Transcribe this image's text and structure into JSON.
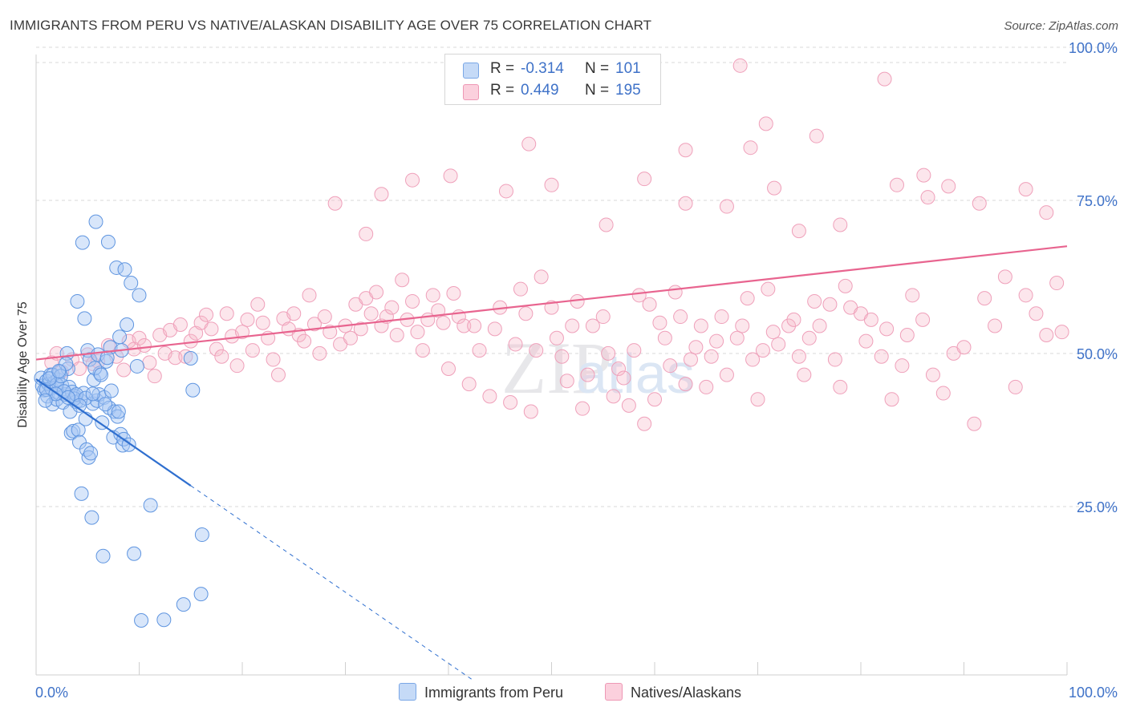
{
  "header": {
    "title": "IMMIGRANTS FROM PERU VS NATIVE/ALASKAN DISABILITY AGE OVER 75 CORRELATION CHART",
    "source": "Source: ZipAtlas.com"
  },
  "stats": {
    "rows": [
      {
        "r_label": "R =",
        "r_value": "-0.314",
        "n_label": "N =",
        "n_value": "101",
        "color": "#a9c8f3"
      },
      {
        "r_label": "R =",
        "r_value": "0.449",
        "n_label": "N =",
        "n_value": "195",
        "color": "#f6b7c9"
      }
    ]
  },
  "legend": {
    "items": [
      {
        "label": "Immigrants from Peru",
        "color": "#a9c8f3"
      },
      {
        "label": "Natives/Alaskans",
        "color": "#f6b7c9"
      }
    ]
  },
  "watermark": {
    "zip": "ZIP",
    "atlas": "atlas"
  },
  "chart_data": {
    "type": "scatter",
    "title": "IMMIGRANTS FROM PERU VS NATIVE/ALASKAN DISABILITY AGE OVER 75 CORRELATION CHART",
    "xlabel": "",
    "ylabel": "Disability Age Over 75",
    "xlim": [
      0,
      100
    ],
    "ylim": [
      0,
      100
    ],
    "x_tick_labels": [
      "0.0%",
      "100.0%"
    ],
    "y_tick_labels": [
      "25.0%",
      "50.0%",
      "75.0%",
      "100.0%"
    ],
    "y_ticks": [
      25,
      50,
      75,
      100
    ],
    "grid": true,
    "series": [
      {
        "name": "Immigrants from Peru",
        "color": "#6fa3e8",
        "line_color": "#2f6fcf",
        "trend": {
          "x0": 0,
          "y0": 48.3,
          "x1": 15,
          "y1": 30.9,
          "dashed_to_x": 42.5
        },
        "points": [
          [
            0.5,
            48.5
          ],
          [
            0.6,
            47.2
          ],
          [
            0.8,
            46.5
          ],
          [
            1.0,
            48.0
          ],
          [
            1.1,
            45.5
          ],
          [
            1.2,
            47.5
          ],
          [
            1.4,
            49.0
          ],
          [
            1.5,
            46.8
          ],
          [
            1.6,
            44.2
          ],
          [
            1.8,
            47.8
          ],
          [
            2.0,
            45.0
          ],
          [
            2.1,
            48.2
          ],
          [
            2.2,
            46.0
          ],
          [
            2.3,
            49.5
          ],
          [
            2.5,
            47.3
          ],
          [
            2.6,
            44.5
          ],
          [
            2.8,
            45.8
          ],
          [
            3.0,
            52.5
          ],
          [
            3.1,
            50.0
          ],
          [
            3.2,
            47.0
          ],
          [
            3.3,
            43.0
          ],
          [
            3.4,
            39.5
          ],
          [
            3.5,
            46.2
          ],
          [
            3.6,
            39.8
          ],
          [
            3.8,
            45.5
          ],
          [
            3.9,
            44.6
          ],
          [
            4.0,
            61.0
          ],
          [
            4.1,
            40.0
          ],
          [
            4.2,
            38.0
          ],
          [
            4.3,
            44.8
          ],
          [
            4.4,
            29.6
          ],
          [
            4.5,
            70.6
          ],
          [
            4.6,
            46.0
          ],
          [
            4.7,
            58.2
          ],
          [
            4.8,
            41.8
          ],
          [
            4.9,
            36.8
          ],
          [
            5.0,
            53.0
          ],
          [
            5.1,
            35.5
          ],
          [
            5.2,
            51.5
          ],
          [
            5.3,
            36.2
          ],
          [
            5.4,
            25.7
          ],
          [
            5.5,
            44.3
          ],
          [
            5.6,
            48.2
          ],
          [
            5.8,
            74.0
          ],
          [
            5.9,
            44.8
          ],
          [
            6.0,
            52.3
          ],
          [
            6.1,
            45.8
          ],
          [
            6.2,
            49.3
          ],
          [
            6.4,
            41.2
          ],
          [
            6.5,
            19.4
          ],
          [
            6.6,
            45.3
          ],
          [
            6.8,
            51.2
          ],
          [
            7.0,
            70.7
          ],
          [
            7.1,
            43.6
          ],
          [
            7.2,
            53.5
          ],
          [
            7.3,
            46.4
          ],
          [
            7.5,
            38.8
          ],
          [
            7.6,
            43.0
          ],
          [
            7.8,
            66.5
          ],
          [
            7.9,
            42.2
          ],
          [
            8.0,
            43.0
          ],
          [
            8.2,
            39.3
          ],
          [
            8.3,
            53.0
          ],
          [
            8.4,
            37.5
          ],
          [
            8.5,
            38.5
          ],
          [
            8.6,
            66.2
          ],
          [
            8.8,
            57.2
          ],
          [
            9.0,
            37.6
          ],
          [
            9.2,
            64.0
          ],
          [
            9.5,
            19.8
          ],
          [
            9.8,
            50.4
          ],
          [
            10.0,
            62.0
          ],
          [
            10.2,
            8.9
          ],
          [
            11.1,
            27.7
          ],
          [
            12.4,
            9.0
          ],
          [
            14.3,
            11.5
          ],
          [
            15.0,
            51.7
          ],
          [
            15.2,
            46.5
          ],
          [
            16.0,
            13.2
          ],
          [
            16.1,
            22.9
          ],
          [
            1.0,
            46.6
          ],
          [
            1.6,
            49.0
          ],
          [
            2.0,
            47.4
          ],
          [
            2.4,
            48.8
          ],
          [
            2.7,
            46.3
          ],
          [
            3.7,
            45.1
          ],
          [
            5.7,
            50.1
          ],
          [
            6.3,
            49.0
          ],
          [
            2.9,
            50.8
          ],
          [
            1.3,
            48.4
          ],
          [
            1.9,
            45.9
          ],
          [
            3.9,
            45.8
          ],
          [
            4.8,
            45.2
          ],
          [
            5.5,
            45.9
          ],
          [
            6.9,
            51.8
          ],
          [
            8.1,
            55.2
          ],
          [
            0.9,
            44.8
          ],
          [
            2.2,
            49.6
          ],
          [
            3.1,
            45.3
          ],
          [
            4.2,
            44.0
          ],
          [
            6.7,
            44.2
          ]
        ]
      },
      {
        "name": "Natives/Alaskans",
        "color": "#f29ab7",
        "line_color": "#e8648f",
        "trend": {
          "x0": 0,
          "y0": 51.5,
          "x1": 100,
          "y1": 70.0
        },
        "points": [
          [
            1.5,
            51.0
          ],
          [
            2.0,
            52.5
          ],
          [
            2.5,
            49.5
          ],
          [
            3.5,
            51.5
          ],
          [
            4.2,
            50.0
          ],
          [
            5.0,
            52.3
          ],
          [
            5.5,
            50.8
          ],
          [
            6.0,
            51.2
          ],
          [
            7.0,
            53.8
          ],
          [
            7.8,
            52.0
          ],
          [
            8.5,
            49.8
          ],
          [
            9.0,
            54.5
          ],
          [
            9.5,
            53.2
          ],
          [
            10.0,
            55.0
          ],
          [
            10.5,
            53.8
          ],
          [
            11.0,
            51.0
          ],
          [
            11.5,
            48.8
          ],
          [
            12.0,
            55.5
          ],
          [
            12.5,
            52.5
          ],
          [
            13.0,
            56.3
          ],
          [
            13.5,
            51.8
          ],
          [
            14.0,
            57.2
          ],
          [
            14.5,
            52.0
          ],
          [
            15.0,
            54.5
          ],
          [
            15.5,
            55.8
          ],
          [
            16.0,
            57.5
          ],
          [
            16.5,
            58.8
          ],
          [
            17.0,
            56.5
          ],
          [
            17.5,
            53.2
          ],
          [
            18.0,
            52.0
          ],
          [
            18.5,
            59.0
          ],
          [
            19.0,
            55.3
          ],
          [
            19.5,
            50.5
          ],
          [
            20.0,
            56.0
          ],
          [
            20.5,
            58.0
          ],
          [
            21.0,
            53.0
          ],
          [
            21.5,
            60.5
          ],
          [
            22.0,
            57.5
          ],
          [
            22.5,
            55.0
          ],
          [
            23.0,
            51.5
          ],
          [
            23.5,
            49.0
          ],
          [
            24.0,
            58.2
          ],
          [
            24.5,
            56.5
          ],
          [
            25.0,
            59.0
          ],
          [
            25.5,
            55.5
          ],
          [
            26.0,
            54.5
          ],
          [
            26.5,
            62.0
          ],
          [
            27.0,
            57.3
          ],
          [
            27.5,
            52.5
          ],
          [
            28.0,
            58.5
          ],
          [
            28.5,
            56.0
          ],
          [
            29.0,
            77.0
          ],
          [
            29.5,
            54.0
          ],
          [
            30.0,
            57.0
          ],
          [
            30.5,
            55.0
          ],
          [
            31.0,
            60.5
          ],
          [
            31.5,
            56.5
          ],
          [
            32.0,
            61.5
          ],
          [
            32.5,
            59.0
          ],
          [
            33.0,
            62.5
          ],
          [
            33.5,
            57.0
          ],
          [
            34.0,
            58.5
          ],
          [
            34.5,
            60.0
          ],
          [
            35.0,
            55.5
          ],
          [
            35.5,
            64.5
          ],
          [
            36.0,
            58.0
          ],
          [
            36.5,
            61.0
          ],
          [
            37.0,
            56.0
          ],
          [
            37.5,
            53.0
          ],
          [
            38.0,
            58.0
          ],
          [
            38.5,
            62.0
          ],
          [
            39.0,
            59.5
          ],
          [
            39.5,
            57.5
          ],
          [
            40.0,
            50.0
          ],
          [
            40.5,
            62.3
          ],
          [
            41.0,
            58.5
          ],
          [
            41.5,
            57.0
          ],
          [
            42.0,
            47.5
          ],
          [
            42.5,
            57.0
          ],
          [
            43.0,
            53.0
          ],
          [
            44.0,
            45.5
          ],
          [
            44.5,
            56.5
          ],
          [
            45.0,
            60.0
          ],
          [
            46.0,
            44.5
          ],
          [
            46.5,
            54.0
          ],
          [
            47.0,
            63.0
          ],
          [
            47.5,
            59.0
          ],
          [
            48.0,
            43.0
          ],
          [
            48.5,
            53.0
          ],
          [
            49.0,
            65.0
          ],
          [
            50.0,
            60.0
          ],
          [
            50.5,
            55.0
          ],
          [
            51.0,
            52.0
          ],
          [
            51.5,
            48.0
          ],
          [
            52.0,
            57.0
          ],
          [
            52.5,
            61.0
          ],
          [
            53.0,
            43.5
          ],
          [
            53.5,
            49.0
          ],
          [
            54.0,
            57.0
          ],
          [
            55.0,
            58.5
          ],
          [
            55.5,
            52.5
          ],
          [
            56.0,
            45.5
          ],
          [
            56.5,
            50.0
          ],
          [
            57.0,
            48.5
          ],
          [
            57.5,
            44.0
          ],
          [
            58.0,
            53.0
          ],
          [
            58.5,
            62.0
          ],
          [
            59.0,
            41.0
          ],
          [
            59.5,
            60.5
          ],
          [
            60.0,
            45.0
          ],
          [
            60.5,
            57.5
          ],
          [
            61.0,
            55.0
          ],
          [
            61.5,
            50.5
          ],
          [
            62.0,
            62.5
          ],
          [
            62.5,
            58.5
          ],
          [
            63.0,
            47.5
          ],
          [
            63.5,
            51.5
          ],
          [
            64.0,
            53.5
          ],
          [
            64.5,
            57.0
          ],
          [
            65.0,
            47.0
          ],
          [
            65.5,
            52.0
          ],
          [
            66.0,
            54.5
          ],
          [
            66.5,
            58.5
          ],
          [
            67.0,
            49.0
          ],
          [
            68.0,
            55.0
          ],
          [
            68.5,
            57.0
          ],
          [
            69.0,
            61.5
          ],
          [
            69.5,
            51.5
          ],
          [
            70.0,
            45.0
          ],
          [
            70.5,
            53.0
          ],
          [
            71.0,
            63.0
          ],
          [
            71.5,
            56.0
          ],
          [
            72.0,
            54.0
          ],
          [
            73.0,
            57.0
          ],
          [
            73.5,
            58.0
          ],
          [
            74.0,
            52.0
          ],
          [
            74.5,
            49.0
          ],
          [
            75.0,
            55.0
          ],
          [
            75.5,
            61.0
          ],
          [
            76.0,
            57.0
          ],
          [
            77.0,
            60.5
          ],
          [
            77.5,
            51.5
          ],
          [
            78.0,
            47.0
          ],
          [
            78.5,
            63.5
          ],
          [
            79.0,
            60.0
          ],
          [
            80.0,
            59.0
          ],
          [
            80.5,
            54.5
          ],
          [
            81.0,
            58.0
          ],
          [
            82.0,
            52.0
          ],
          [
            82.5,
            56.5
          ],
          [
            83.0,
            45.0
          ],
          [
            84.0,
            50.5
          ],
          [
            84.5,
            55.5
          ],
          [
            85.0,
            62.0
          ],
          [
            86.0,
            58.0
          ],
          [
            87.0,
            49.0
          ],
          [
            88.0,
            46.0
          ],
          [
            89.0,
            52.5
          ],
          [
            90.0,
            53.5
          ],
          [
            91.0,
            41.0
          ],
          [
            92.0,
            61.5
          ],
          [
            93.0,
            57.0
          ],
          [
            94.0,
            65.0
          ],
          [
            95.0,
            47.0
          ],
          [
            96.0,
            62.0
          ],
          [
            97.0,
            59.0
          ],
          [
            98.0,
            55.5
          ],
          [
            99.0,
            64.0
          ],
          [
            99.5,
            56.0
          ],
          [
            32.0,
            72.0
          ],
          [
            33.5,
            78.5
          ],
          [
            36.5,
            80.8
          ],
          [
            40.2,
            81.5
          ],
          [
            45.6,
            79.0
          ],
          [
            50.0,
            80.0
          ],
          [
            55.3,
            73.5
          ],
          [
            59.0,
            81.0
          ],
          [
            63.0,
            77.0
          ],
          [
            67.0,
            76.5
          ],
          [
            71.6,
            79.5
          ],
          [
            74.0,
            72.5
          ],
          [
            78.0,
            73.5
          ],
          [
            83.5,
            80.0
          ],
          [
            86.5,
            78.0
          ],
          [
            88.5,
            79.8
          ],
          [
            91.5,
            77.0
          ],
          [
            96.0,
            79.3
          ],
          [
            98.0,
            75.5
          ],
          [
            68.3,
            99.5
          ],
          [
            82.3,
            97.3
          ],
          [
            70.8,
            90.0
          ],
          [
            75.7,
            88.0
          ],
          [
            47.8,
            86.7
          ],
          [
            63.0,
            85.7
          ],
          [
            69.3,
            86.1
          ],
          [
            86.1,
            81.6
          ]
        ]
      }
    ]
  }
}
